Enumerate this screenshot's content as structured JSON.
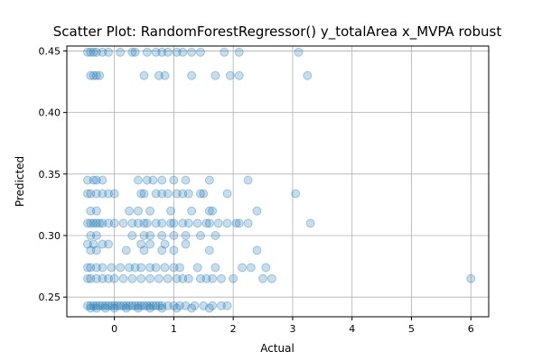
{
  "chart_data": {
    "type": "scatter",
    "title": "Scatter Plot: RandomForestRegressor() y_totalArea x_MVPA robust",
    "xlabel": "Actual",
    "ylabel": "Predicted",
    "xlim": [
      -0.8,
      6.3
    ],
    "ylim": [
      0.234,
      0.454
    ],
    "xticks": [
      0,
      1,
      2,
      3,
      4,
      5,
      6
    ],
    "yticks": [
      0.25,
      0.3,
      0.35,
      0.4,
      0.45
    ],
    "ytick_labels": [
      "0.25",
      "0.30",
      "0.35",
      "0.40",
      "0.45"
    ],
    "grid": true,
    "marker_color": "#1f77b4",
    "marker_alpha": 0.25,
    "points": [
      [
        -0.45,
        0.449
      ],
      [
        -0.4,
        0.449
      ],
      [
        -0.35,
        0.449
      ],
      [
        -0.3,
        0.449
      ],
      [
        -0.2,
        0.449
      ],
      [
        -0.1,
        0.449
      ],
      [
        0.1,
        0.449
      ],
      [
        0.3,
        0.449
      ],
      [
        0.35,
        0.449
      ],
      [
        0.55,
        0.449
      ],
      [
        0.7,
        0.449
      ],
      [
        0.8,
        0.449
      ],
      [
        0.9,
        0.449
      ],
      [
        1.05,
        0.449
      ],
      [
        1.15,
        0.449
      ],
      [
        1.3,
        0.449
      ],
      [
        1.45,
        0.449
      ],
      [
        1.85,
        0.449
      ],
      [
        2.1,
        0.449
      ],
      [
        3.1,
        0.449
      ],
      [
        -0.4,
        0.43
      ],
      [
        -0.35,
        0.43
      ],
      [
        -0.3,
        0.43
      ],
      [
        -0.25,
        0.43
      ],
      [
        0.5,
        0.43
      ],
      [
        0.75,
        0.43
      ],
      [
        0.85,
        0.43
      ],
      [
        1.3,
        0.43
      ],
      [
        1.7,
        0.43
      ],
      [
        1.95,
        0.43
      ],
      [
        2.1,
        0.43
      ],
      [
        3.25,
        0.43
      ],
      [
        -0.45,
        0.345
      ],
      [
        -0.35,
        0.345
      ],
      [
        -0.3,
        0.345
      ],
      [
        -0.2,
        0.345
      ],
      [
        0.4,
        0.345
      ],
      [
        0.55,
        0.345
      ],
      [
        0.65,
        0.345
      ],
      [
        0.8,
        0.345
      ],
      [
        1.0,
        0.345
      ],
      [
        1.2,
        0.345
      ],
      [
        1.6,
        0.345
      ],
      [
        2.25,
        0.345
      ],
      [
        -0.45,
        0.334
      ],
      [
        -0.4,
        0.334
      ],
      [
        -0.3,
        0.334
      ],
      [
        -0.2,
        0.334
      ],
      [
        -0.1,
        0.334
      ],
      [
        0.0,
        0.334
      ],
      [
        0.45,
        0.334
      ],
      [
        0.5,
        0.334
      ],
      [
        0.7,
        0.334
      ],
      [
        0.8,
        0.334
      ],
      [
        0.9,
        0.334
      ],
      [
        1.05,
        0.334
      ],
      [
        1.15,
        0.334
      ],
      [
        1.25,
        0.334
      ],
      [
        1.45,
        0.334
      ],
      [
        1.5,
        0.334
      ],
      [
        1.9,
        0.334
      ],
      [
        3.05,
        0.334
      ],
      [
        -0.4,
        0.32
      ],
      [
        -0.3,
        0.32
      ],
      [
        0.25,
        0.32
      ],
      [
        0.4,
        0.32
      ],
      [
        0.6,
        0.32
      ],
      [
        0.95,
        0.32
      ],
      [
        1.3,
        0.32
      ],
      [
        1.6,
        0.32
      ],
      [
        1.65,
        0.32
      ],
      [
        2.4,
        0.32
      ],
      [
        -0.45,
        0.31
      ],
      [
        -0.4,
        0.31
      ],
      [
        -0.35,
        0.31
      ],
      [
        -0.3,
        0.31
      ],
      [
        -0.25,
        0.31
      ],
      [
        -0.2,
        0.31
      ],
      [
        -0.1,
        0.31
      ],
      [
        0.0,
        0.31
      ],
      [
        0.15,
        0.31
      ],
      [
        0.3,
        0.31
      ],
      [
        0.4,
        0.31
      ],
      [
        0.5,
        0.31
      ],
      [
        0.55,
        0.31
      ],
      [
        0.7,
        0.31
      ],
      [
        0.8,
        0.31
      ],
      [
        0.95,
        0.31
      ],
      [
        1.0,
        0.31
      ],
      [
        1.15,
        0.31
      ],
      [
        1.25,
        0.31
      ],
      [
        1.4,
        0.31
      ],
      [
        1.55,
        0.31
      ],
      [
        1.6,
        0.31
      ],
      [
        1.75,
        0.31
      ],
      [
        1.9,
        0.31
      ],
      [
        2.05,
        0.31
      ],
      [
        2.1,
        0.31
      ],
      [
        2.25,
        0.31
      ],
      [
        3.3,
        0.31
      ],
      [
        -0.4,
        0.3
      ],
      [
        -0.3,
        0.3
      ],
      [
        0.3,
        0.3
      ],
      [
        0.5,
        0.3
      ],
      [
        0.6,
        0.3
      ],
      [
        0.8,
        0.3
      ],
      [
        1.0,
        0.3
      ],
      [
        1.2,
        0.3
      ],
      [
        1.45,
        0.3
      ],
      [
        1.7,
        0.3
      ],
      [
        -0.45,
        0.293
      ],
      [
        -0.35,
        0.293
      ],
      [
        -0.2,
        0.293
      ],
      [
        -0.1,
        0.293
      ],
      [
        0.45,
        0.293
      ],
      [
        0.6,
        0.293
      ],
      [
        0.85,
        0.293
      ],
      [
        1.2,
        0.293
      ],
      [
        -0.4,
        0.288
      ],
      [
        -0.3,
        0.288
      ],
      [
        0.2,
        0.288
      ],
      [
        0.5,
        0.288
      ],
      [
        0.8,
        0.288
      ],
      [
        1.0,
        0.288
      ],
      [
        1.6,
        0.288
      ],
      [
        2.4,
        0.288
      ],
      [
        -0.45,
        0.274
      ],
      [
        -0.4,
        0.274
      ],
      [
        -0.3,
        0.274
      ],
      [
        -0.2,
        0.274
      ],
      [
        -0.05,
        0.274
      ],
      [
        0.1,
        0.274
      ],
      [
        0.25,
        0.274
      ],
      [
        0.35,
        0.274
      ],
      [
        0.45,
        0.274
      ],
      [
        0.6,
        0.274
      ],
      [
        0.7,
        0.274
      ],
      [
        0.85,
        0.274
      ],
      [
        1.0,
        0.274
      ],
      [
        1.1,
        0.274
      ],
      [
        1.4,
        0.274
      ],
      [
        1.7,
        0.274
      ],
      [
        2.15,
        0.274
      ],
      [
        2.3,
        0.274
      ],
      [
        2.55,
        0.274
      ],
      [
        -0.45,
        0.265
      ],
      [
        -0.4,
        0.265
      ],
      [
        -0.3,
        0.265
      ],
      [
        -0.2,
        0.265
      ],
      [
        -0.1,
        0.265
      ],
      [
        0.0,
        0.265
      ],
      [
        0.15,
        0.265
      ],
      [
        0.3,
        0.265
      ],
      [
        0.45,
        0.265
      ],
      [
        0.6,
        0.265
      ],
      [
        0.75,
        0.265
      ],
      [
        0.9,
        0.265
      ],
      [
        1.05,
        0.265
      ],
      [
        1.15,
        0.265
      ],
      [
        1.25,
        0.265
      ],
      [
        1.45,
        0.265
      ],
      [
        1.55,
        0.265
      ],
      [
        1.65,
        0.265
      ],
      [
        1.8,
        0.265
      ],
      [
        2.0,
        0.265
      ],
      [
        2.5,
        0.265
      ],
      [
        2.65,
        0.265
      ],
      [
        6.0,
        0.265
      ],
      [
        -0.45,
        0.243
      ],
      [
        -0.4,
        0.243
      ],
      [
        -0.35,
        0.243
      ],
      [
        -0.3,
        0.243
      ],
      [
        -0.25,
        0.243
      ],
      [
        -0.2,
        0.243
      ],
      [
        -0.15,
        0.243
      ],
      [
        -0.1,
        0.243
      ],
      [
        -0.05,
        0.243
      ],
      [
        0.0,
        0.243
      ],
      [
        0.05,
        0.243
      ],
      [
        0.1,
        0.243
      ],
      [
        0.15,
        0.243
      ],
      [
        0.2,
        0.243
      ],
      [
        0.25,
        0.243
      ],
      [
        0.3,
        0.243
      ],
      [
        0.35,
        0.243
      ],
      [
        0.4,
        0.243
      ],
      [
        0.45,
        0.243
      ],
      [
        0.5,
        0.243
      ],
      [
        0.55,
        0.243
      ],
      [
        0.6,
        0.243
      ],
      [
        0.65,
        0.243
      ],
      [
        0.7,
        0.243
      ],
      [
        0.75,
        0.243
      ],
      [
        0.8,
        0.243
      ],
      [
        0.9,
        0.243
      ],
      [
        1.0,
        0.243
      ],
      [
        1.1,
        0.243
      ],
      [
        1.2,
        0.243
      ],
      [
        1.35,
        0.243
      ],
      [
        1.5,
        0.243
      ],
      [
        1.65,
        0.243
      ],
      [
        1.8,
        0.243
      ],
      [
        1.9,
        0.243
      ],
      [
        -0.4,
        0.241
      ],
      [
        -0.3,
        0.241
      ],
      [
        -0.15,
        0.241
      ],
      [
        0.0,
        0.241
      ],
      [
        0.2,
        0.241
      ],
      [
        0.4,
        0.241
      ],
      [
        0.6,
        0.241
      ],
      [
        0.8,
        0.241
      ],
      [
        1.05,
        0.241
      ],
      [
        1.3,
        0.241
      ],
      [
        1.6,
        0.241
      ]
    ]
  }
}
